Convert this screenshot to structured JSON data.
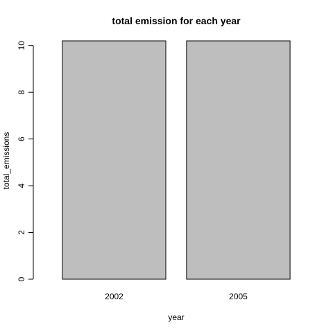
{
  "chart_data": {
    "type": "bar",
    "title": "total emission for each year",
    "xlabel": "year",
    "ylabel": "total_emissions",
    "categories": [
      "2002",
      "2005"
    ],
    "values": [
      10.2,
      10.2
    ],
    "ylim": [
      0,
      10.2
    ],
    "yticks": [
      "0",
      "2",
      "4",
      "6",
      "8",
      "10"
    ],
    "grid": false,
    "legend": "none",
    "colors": {
      "bar_fill": "#bebebe",
      "bar_stroke": "#000000",
      "axis": "#000000"
    }
  }
}
